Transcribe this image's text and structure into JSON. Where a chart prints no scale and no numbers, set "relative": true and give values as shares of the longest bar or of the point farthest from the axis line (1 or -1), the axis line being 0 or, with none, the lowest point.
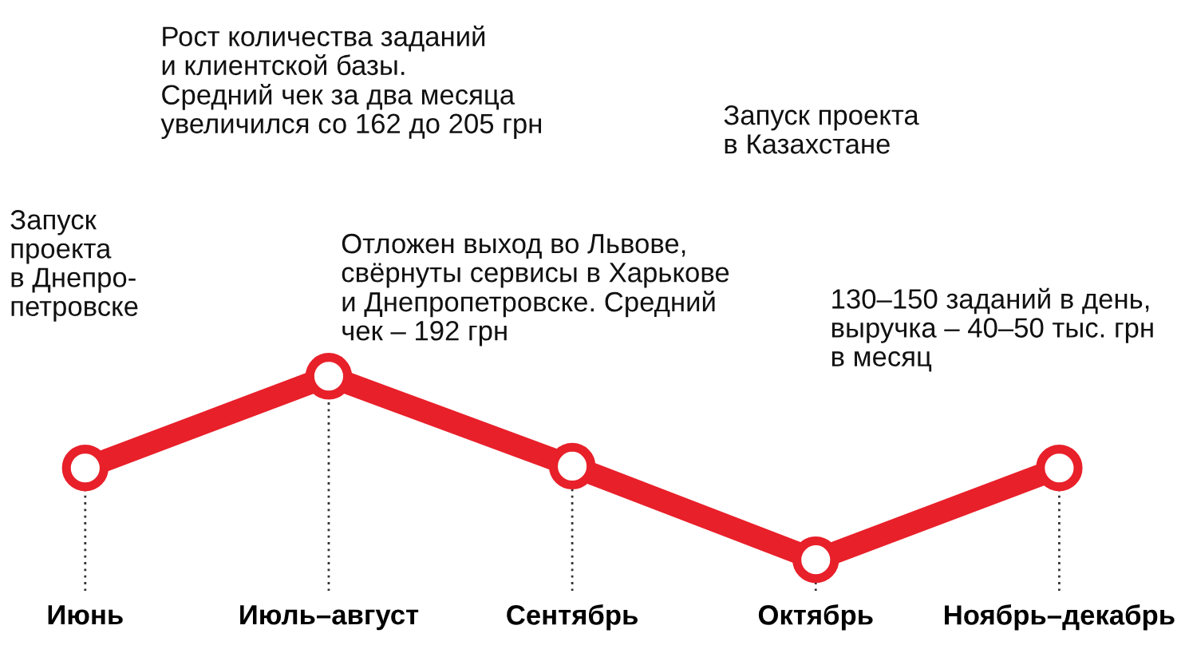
{
  "chart_data": {
    "type": "line",
    "relative": true,
    "categories": [
      "Июнь",
      "Июль–август",
      "Сентябрь",
      "Октябрь",
      "Ноябрь–декабрь"
    ],
    "series": [
      {
        "color": "#e8202a",
        "values": [
          0.5,
          1,
          0.51,
          0,
          0.5
        ]
      }
    ],
    "marker": "circle",
    "grid": "x",
    "legend": false,
    "annotations": [
      "Запуск\nпроекта\nв Днепро-\nпетровске",
      "Рост количества заданий\nи клиентской базы.\nСредний чек за два месяца\nувеличился со 162 до 205 грн",
      "Отложен выход во Львове,\nсвёрнуты сервисы в Харькове\nи Днепропетровске. Средний\nчек – 192 грн",
      "Запуск проекта\nв Казахстане",
      "130–150 заданий в день,\nвыручка – 40–50 тыс. грн\nв месяц"
    ]
  }
}
